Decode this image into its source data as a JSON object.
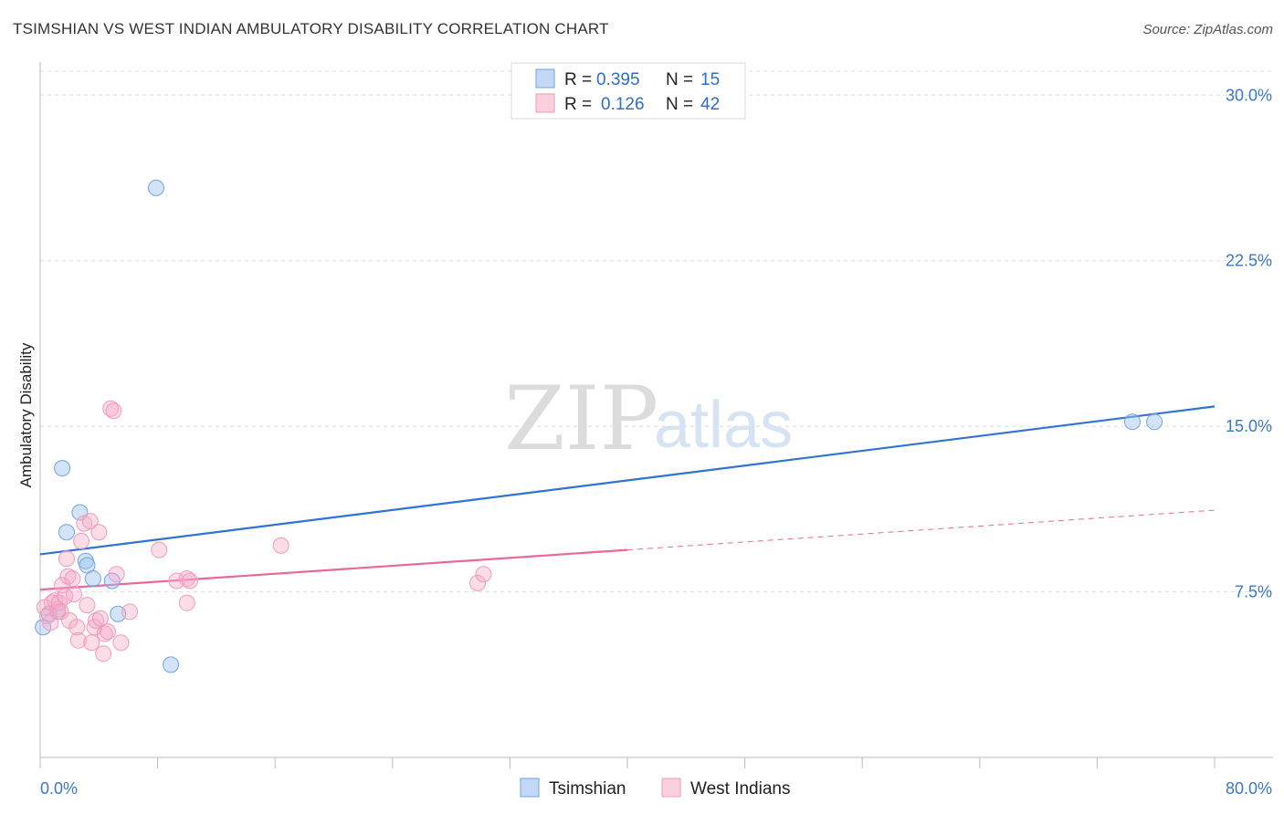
{
  "title": "TSIMSHIAN VS WEST INDIAN AMBULATORY DISABILITY CORRELATION CHART",
  "source": "Source: ZipAtlas.com",
  "watermark": {
    "zip": "ZIP",
    "atlas": "atlas"
  },
  "chart_data": {
    "type": "scatter",
    "ylabel": "Ambulatory Disability",
    "xlim": [
      0,
      80
    ],
    "ylim": [
      0,
      31.5
    ],
    "x_tick_labels": [
      {
        "value": 0,
        "label": "0.0%"
      },
      {
        "value": 80,
        "label": "80.0%"
      }
    ],
    "y_tick_labels": [
      {
        "value": 7.5,
        "label": "7.5%"
      },
      {
        "value": 15.0,
        "label": "15.0%"
      },
      {
        "value": 22.5,
        "label": "22.5%"
      },
      {
        "value": 30.0,
        "label": "30.0%"
      }
    ],
    "grid": "horizontal dashed",
    "legend_position": "top-center",
    "series": [
      {
        "name": "Tsimshian",
        "color": "#6fa3e8",
        "line_color": "#2f74d0",
        "r_label": "R =",
        "r_value": "0.395",
        "n_label": "N =",
        "n_value": "15",
        "points": [
          [
            0.2,
            5.9
          ],
          [
            0.6,
            6.5
          ],
          [
            1.2,
            6.6
          ],
          [
            1.5,
            13.1
          ],
          [
            1.8,
            10.2
          ],
          [
            2.7,
            11.1
          ],
          [
            3.1,
            8.9
          ],
          [
            3.2,
            8.7
          ],
          [
            3.6,
            8.1
          ],
          [
            4.9,
            8.0
          ],
          [
            5.3,
            6.5
          ],
          [
            7.9,
            25.8
          ],
          [
            8.9,
            4.2
          ],
          [
            74.4,
            15.2
          ],
          [
            75.9,
            15.2
          ]
        ],
        "trend": {
          "x": [
            0,
            80
          ],
          "y": [
            9.2,
            15.9
          ],
          "dashed_from": null
        }
      },
      {
        "name": "West Indians",
        "color": "#f19ab8",
        "line_color": "#e8689a",
        "r_label": "R =",
        "r_value": "0.126",
        "n_label": "N =",
        "n_value": "42",
        "points": [
          [
            0.3,
            6.8
          ],
          [
            0.5,
            6.4
          ],
          [
            0.7,
            6.1
          ],
          [
            0.8,
            7.0
          ],
          [
            1.0,
            7.1
          ],
          [
            1.2,
            6.7
          ],
          [
            1.3,
            7.0
          ],
          [
            1.4,
            6.6
          ],
          [
            1.5,
            7.8
          ],
          [
            1.7,
            7.3
          ],
          [
            1.8,
            9.0
          ],
          [
            1.9,
            8.2
          ],
          [
            2.0,
            6.2
          ],
          [
            2.2,
            8.1
          ],
          [
            2.3,
            7.4
          ],
          [
            2.5,
            5.9
          ],
          [
            2.6,
            5.3
          ],
          [
            2.8,
            9.8
          ],
          [
            3.0,
            10.6
          ],
          [
            3.2,
            6.9
          ],
          [
            3.4,
            10.7
          ],
          [
            3.5,
            5.2
          ],
          [
            3.7,
            5.9
          ],
          [
            3.8,
            6.2
          ],
          [
            4.0,
            10.2
          ],
          [
            4.1,
            6.3
          ],
          [
            4.3,
            4.7
          ],
          [
            4.4,
            5.6
          ],
          [
            4.6,
            5.7
          ],
          [
            4.8,
            15.8
          ],
          [
            5.0,
            15.7
          ],
          [
            5.2,
            8.3
          ],
          [
            5.5,
            5.2
          ],
          [
            6.1,
            6.6
          ],
          [
            8.1,
            9.4
          ],
          [
            9.3,
            8.0
          ],
          [
            10.0,
            8.1
          ],
          [
            10.2,
            8.0
          ],
          [
            10.0,
            7.0
          ],
          [
            16.4,
            9.6
          ],
          [
            29.8,
            7.9
          ],
          [
            30.2,
            8.3
          ]
        ],
        "trend": {
          "x": [
            0,
            80
          ],
          "y": [
            7.6,
            11.2
          ],
          "dashed_from": 40
        }
      }
    ]
  }
}
